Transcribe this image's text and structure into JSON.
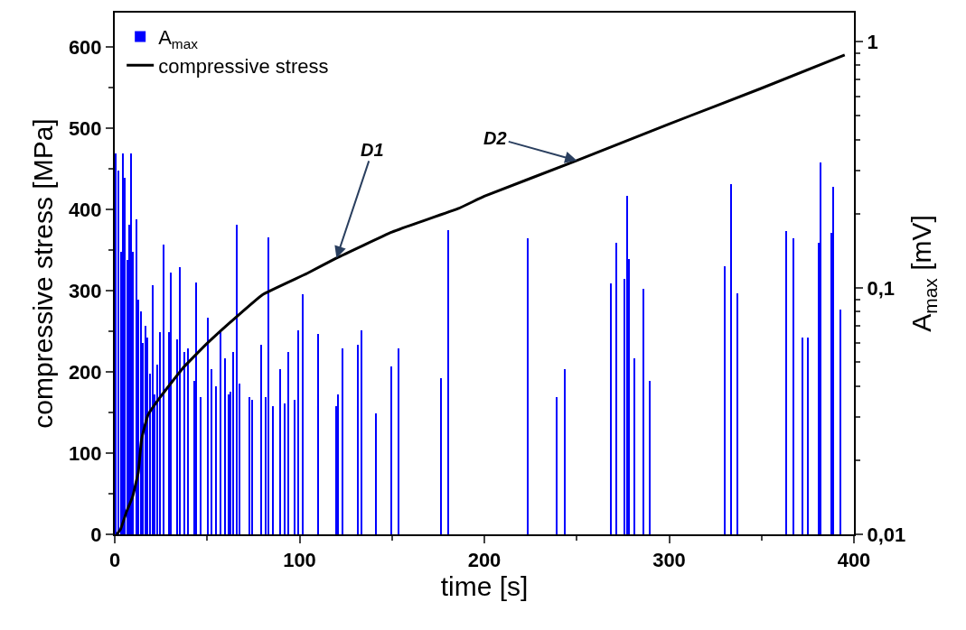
{
  "chart_data": {
    "type": "bar",
    "xlabel": "time [s]",
    "ylabel": "compressive stress [MPa]",
    "y2label": "A$_{max}$ [mV]",
    "xlim": [
      0,
      400
    ],
    "xticks": [
      0,
      100,
      200,
      300,
      400
    ],
    "ylim": [
      0,
      642
    ],
    "yticks": [
      0,
      {
        "value": 50,
        "label": null
      },
      100,
      {
        "value": 150,
        "label": null
      },
      200,
      {
        "value": 250,
        "label": null
      },
      300,
      {
        "value": 350,
        "label": null
      },
      400,
      {
        "value": 450,
        "label": null
      },
      500,
      {
        "value": 550,
        "label": null
      },
      600
    ],
    "y2lim": [
      0.01,
      1.31
    ],
    "y2ticks": [
      {
        "value": 0.01,
        "label": "0,01"
      },
      {
        "value": 0.02,
        "label": null
      },
      {
        "value": 0.03,
        "label": null
      },
      {
        "value": 0.04,
        "label": null
      },
      {
        "value": 0.05,
        "label": null
      },
      {
        "value": 0.06,
        "label": null
      },
      {
        "value": 0.07,
        "label": null
      },
      {
        "value": 0.08,
        "label": null
      },
      {
        "value": 0.09,
        "label": null
      },
      {
        "value": 0.1,
        "label": "0,1"
      },
      {
        "value": 0.2,
        "label": null
      },
      {
        "value": 0.3,
        "label": null
      },
      {
        "value": 0.4,
        "label": null
      },
      {
        "value": 0.5,
        "label": null
      },
      {
        "value": 0.6,
        "label": null
      },
      {
        "value": 0.7,
        "label": null
      },
      {
        "value": 0.8,
        "label": null
      },
      {
        "value": 0.9,
        "label": null
      },
      {
        "value": 1,
        "label": "1"
      }
    ],
    "log": "y2",
    "legend": "top left",
    "series": [
      {
        "name": "A$_{max}$",
        "axis": "y2",
        "color": "#0000ff",
        "x": [
          0.5,
          2,
          3.3,
          4.4,
          5.5,
          6.8,
          7.9,
          8.8,
          10,
          11.6,
          12.8,
          14,
          15.2,
          16.5,
          17.8,
          19,
          20.4,
          21.5,
          23.1,
          24.6,
          26.4,
          29.2,
          30.3,
          33.7,
          35.2,
          37.8,
          39.8,
          43,
          44.3,
          46.6,
          50.4,
          52.3,
          54.6,
          57.2,
          59.8,
          61.5,
          62.6,
          64.2,
          65.9,
          67.5,
          72.9,
          74.2,
          79.4,
          81.7,
          83.3,
          85.4,
          89.6,
          91.9,
          93.9,
          97.5,
          99.3,
          102,
          109.9,
          119.8,
          120.9,
          123.4,
          131.7,
          133.7,
          141.2,
          149.8,
          153.5,
          176.8,
          180.4,
          223.3,
          239.3,
          243.4,
          268.5,
          271.6,
          276,
          277.2,
          278.4,
          281.2,
          286.2,
          289.6,
          330.2,
          333.6,
          336.8,
          363.3,
          367.5,
          372,
          374.9,
          380.8,
          382,
          387.8,
          389,
          392.7
        ],
        "values": [
          0.35,
          0.3,
          0.14,
          0.35,
          0.28,
          0.13,
          0.18,
          0.35,
          0.14,
          0.19,
          0.09,
          0.08,
          0.06,
          0.07,
          0.063,
          0.045,
          0.103,
          0.037,
          0.049,
          0.066,
          0.15,
          0.066,
          0.115,
          0.062,
          0.121,
          0.055,
          0.057,
          0.042,
          0.105,
          0.036,
          0.076,
          0.047,
          0.04,
          0.066,
          0.052,
          0.037,
          0.038,
          0.055,
          0.18,
          0.041,
          0.036,
          0.035,
          0.059,
          0.036,
          0.16,
          0.033,
          0.047,
          0.034,
          0.055,
          0.035,
          0.067,
          0.094,
          0.065,
          0.033,
          0.037,
          0.057,
          0.059,
          0.067,
          0.031,
          0.048,
          0.057,
          0.043,
          0.171,
          0.159,
          0.036,
          0.047,
          0.104,
          0.152,
          0.109,
          0.236,
          0.131,
          0.052,
          0.099,
          0.042,
          0.122,
          0.264,
          0.095,
          0.17,
          0.159,
          0.063,
          0.063,
          0.152,
          0.324,
          0.167,
          0.258,
          0.082
        ]
      },
      {
        "name": "compressive stress",
        "type": "line",
        "color": "#000000",
        "marker": "none",
        "line_style": "solid",
        "x": [
          1,
          3.1,
          6.4,
          9.6,
          12.7,
          14.5,
          18,
          25,
          37,
          50,
          65,
          80,
          104,
          120,
          150,
          186,
          200,
          250,
          300,
          350,
          395
        ],
        "values": [
          0,
          6,
          28,
          46,
          76,
          117,
          147,
          170,
          205,
          235,
          266,
          295,
          321,
          340,
          372,
          401,
          416,
          460,
          505,
          549,
          590
        ]
      }
    ],
    "annotations": [
      {
        "text": "D1",
        "x": 120,
        "y": 340
      },
      {
        "text": "D2",
        "x": 250,
        "y": 460
      }
    ]
  }
}
